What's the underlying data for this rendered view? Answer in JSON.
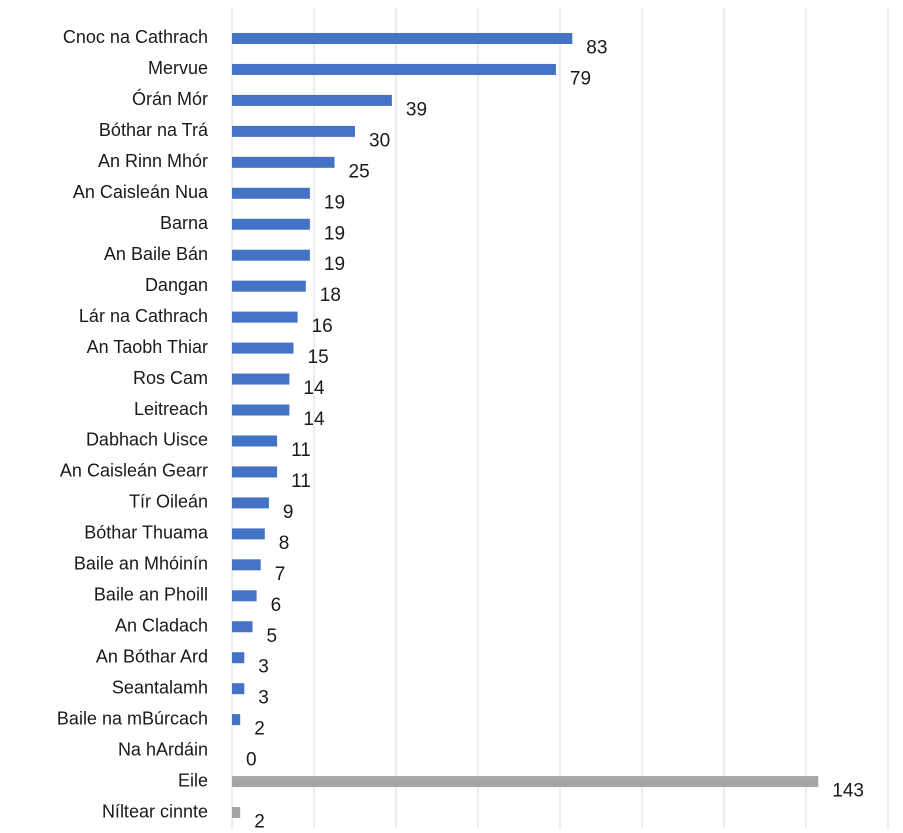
{
  "chart_data": {
    "type": "bar",
    "orientation": "horizontal",
    "title": "",
    "xlabel": "",
    "ylabel": "",
    "xlim": [
      0,
      160
    ],
    "grid": true,
    "legend": "none",
    "categories": [
      "Cnoc na Cathrach",
      "Mervue",
      "Órán Mór",
      "Bóthar na Trá",
      "An Rinn Mhór",
      "An Caisleán Nua",
      "Barna",
      "An Baile Bán",
      "Dangan",
      "Lár na Cathrach",
      "An Taobh Thiar",
      "Ros Cam",
      "Leitreach",
      "Dabhach Uisce",
      "An Caisleán Gearr",
      "Tír Oileán",
      "Bóthar Thuama",
      "Baile an Mhóinín",
      "Baile an Phoill",
      "An Cladach",
      "An Bóthar Ard",
      "Seantalamh",
      "Baile na mBúrcach",
      "Na hArdáin",
      "Eile",
      "Níltear cinnte"
    ],
    "values": [
      83,
      79,
      39,
      30,
      25,
      19,
      19,
      19,
      18,
      16,
      15,
      14,
      14,
      11,
      11,
      9,
      8,
      7,
      6,
      5,
      3,
      3,
      2,
      0,
      143,
      2
    ],
    "value_labels": [
      "83",
      "79",
      "39",
      "30",
      "25",
      "19",
      "19",
      "19",
      "18",
      "16",
      "15",
      "14",
      "14",
      "11",
      "11",
      "9",
      "8",
      "7",
      "6",
      "5",
      "3",
      "3",
      "2",
      "0",
      "143",
      "2"
    ],
    "colors": {
      "primary": "#4472c4",
      "secondary": "#a5a5a5",
      "grid": "#d9d9d9"
    },
    "secondary_categories": [
      "Eile",
      "Níltear cinnte"
    ]
  }
}
